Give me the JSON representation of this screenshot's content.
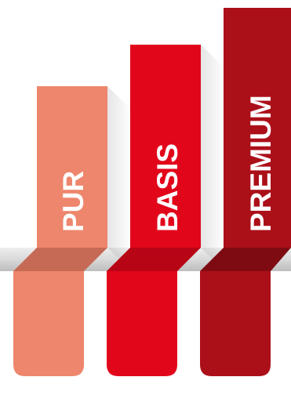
{
  "tiers": [
    {
      "label": "PUR",
      "color": "#ed866c",
      "fold_color": "#c66a55"
    },
    {
      "label": "BASIS",
      "color": "#e2061b",
      "fold_color": "#b80516"
    },
    {
      "label": "PREMIUM",
      "color": "#ab1019",
      "fold_color": "#7f0b12"
    }
  ]
}
